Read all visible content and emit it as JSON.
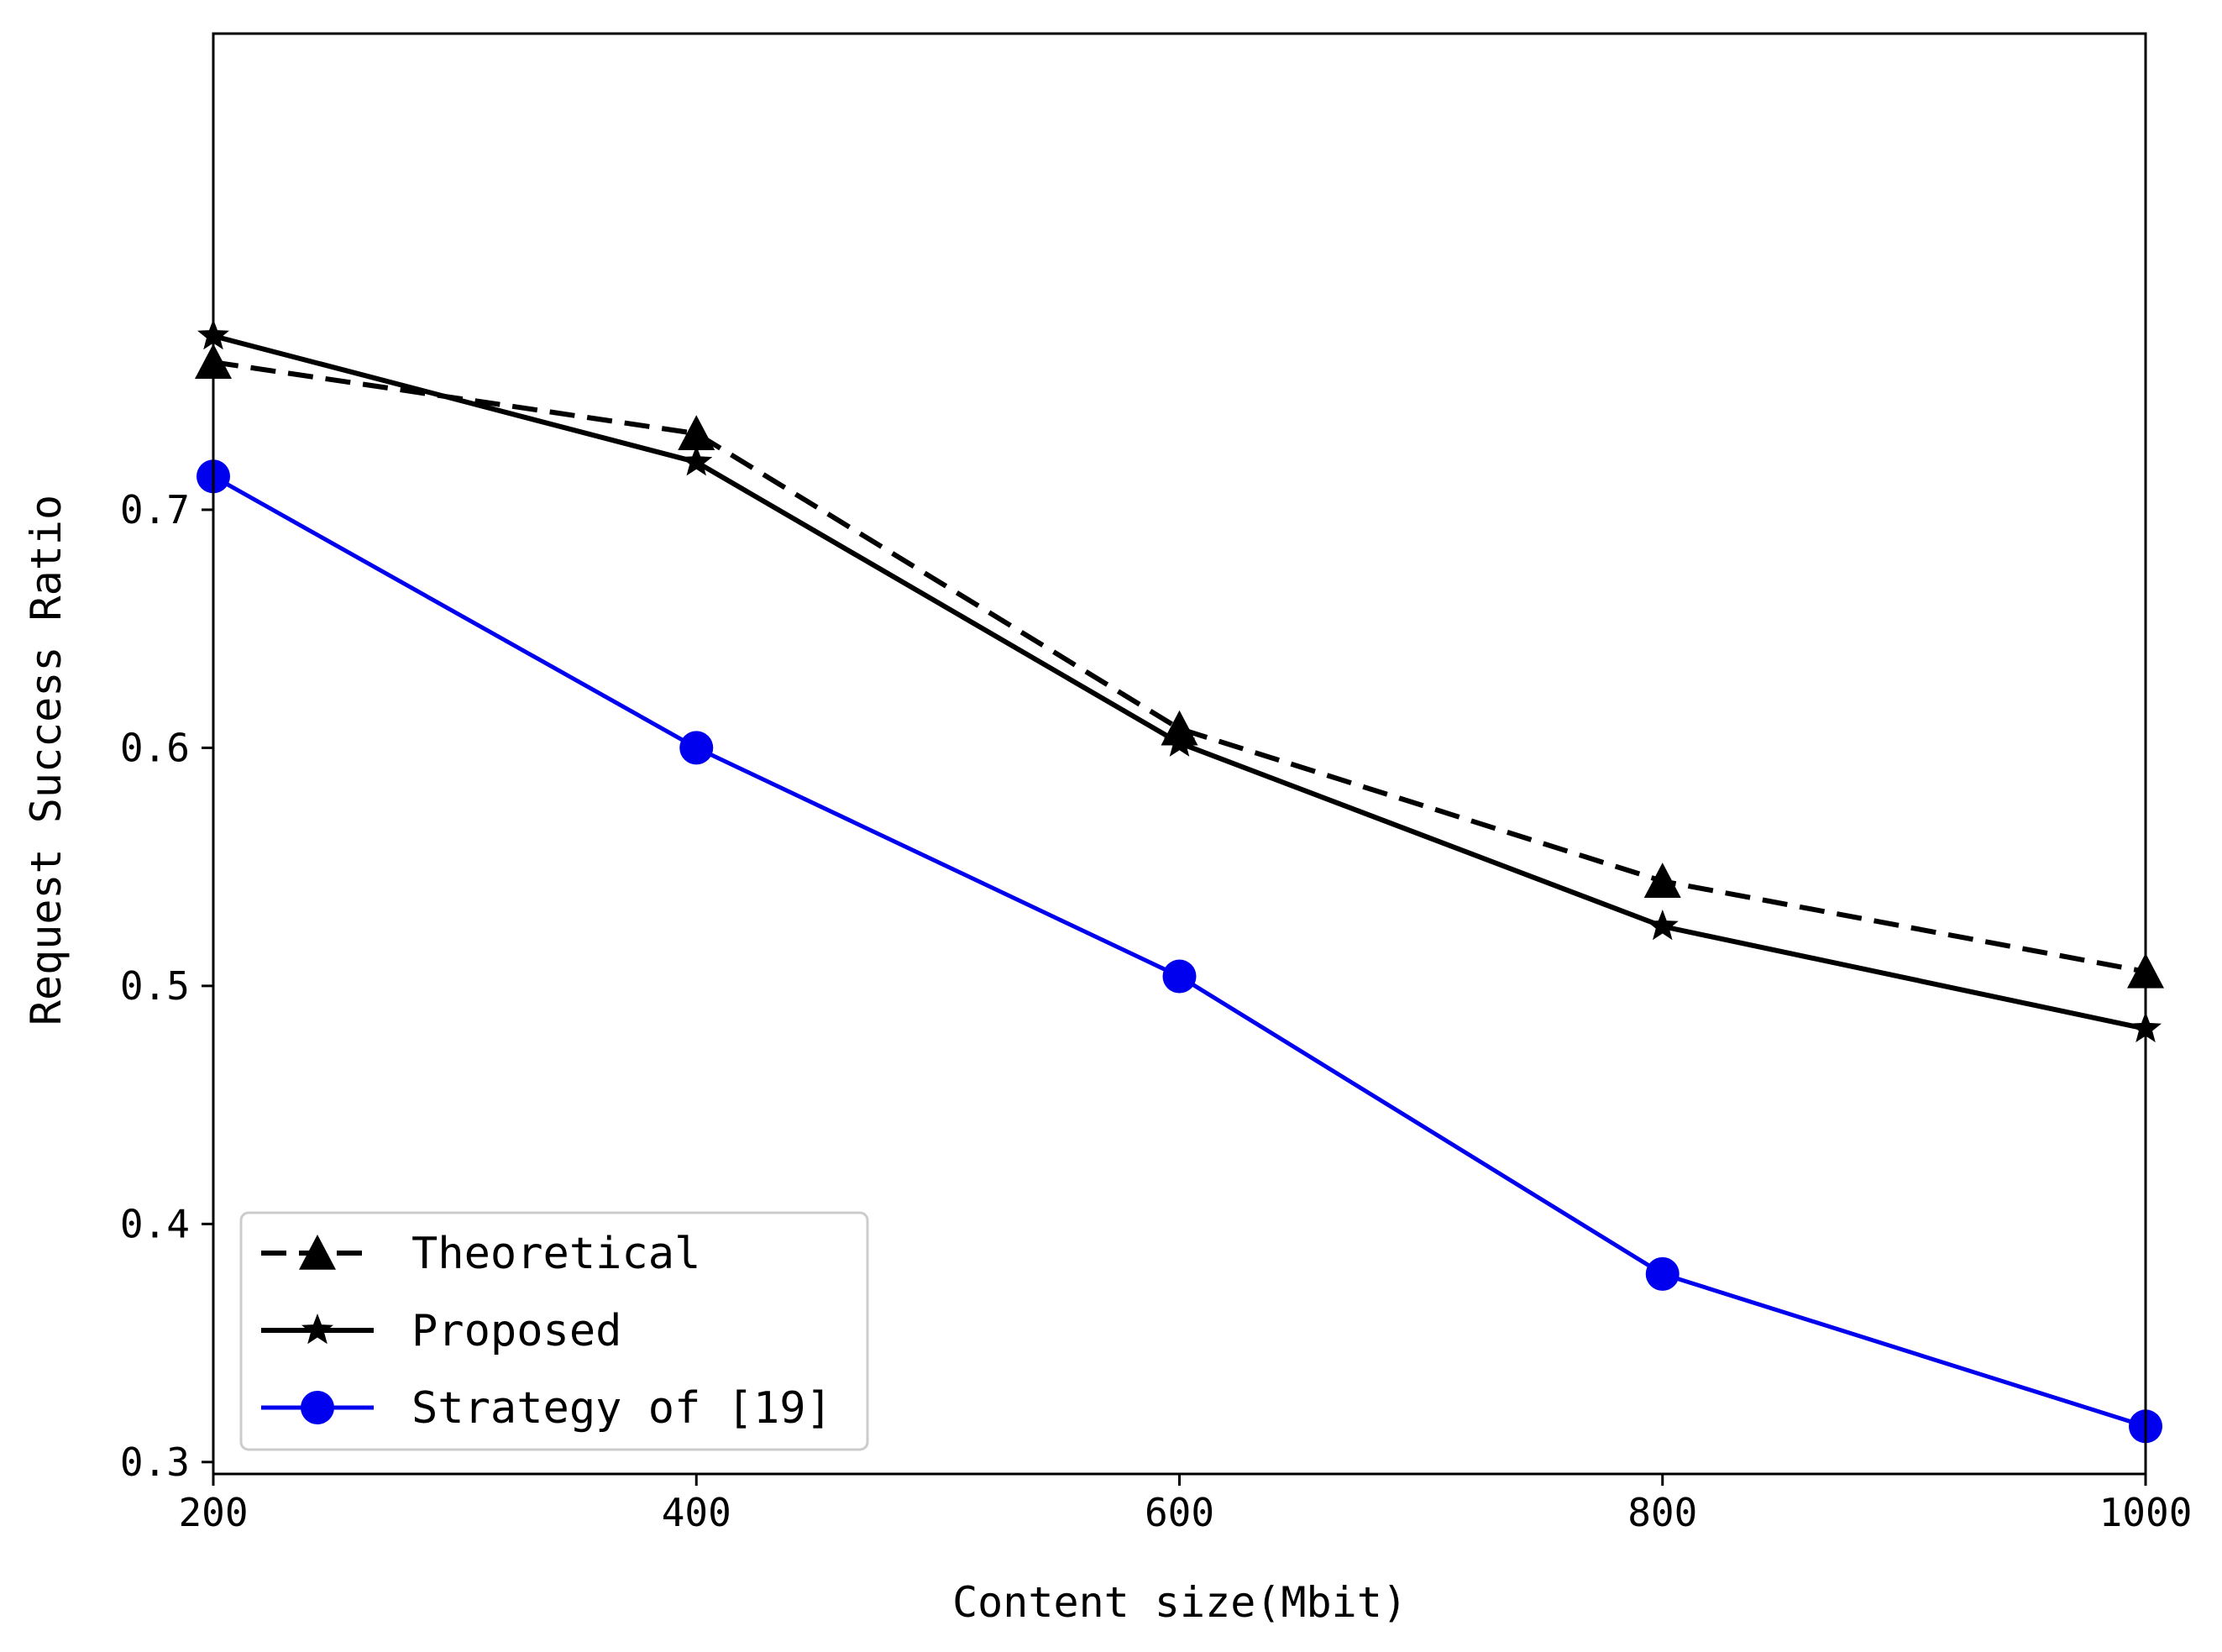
{
  "chart_data": {
    "type": "line",
    "title": "",
    "xlabel": "Content size(Mbit)",
    "ylabel": "Request Success Ratio",
    "x": [
      200,
      400,
      600,
      800,
      1000
    ],
    "xlim": [
      200,
      1000
    ],
    "ylim": [
      0.295,
      0.9
    ],
    "xticks": [
      200,
      400,
      600,
      800,
      1000
    ],
    "xtick_labels": [
      "200",
      "400",
      "600",
      "800",
      "1000"
    ],
    "yticks": [
      0.3,
      0.4,
      0.5,
      0.6,
      0.7
    ],
    "ytick_labels": [
      "0.3",
      "0.4",
      "0.5",
      "0.6",
      "0.7"
    ],
    "grid": false,
    "legend_position": "bottom-left",
    "series": [
      {
        "name": "Theoretical",
        "values": [
          0.762,
          0.732,
          0.608,
          0.544,
          0.506
        ],
        "color": "#000000",
        "line_style": "dashed",
        "marker": "triangle"
      },
      {
        "name": "Proposed",
        "values": [
          0.773,
          0.72,
          0.602,
          0.525,
          0.482
        ],
        "color": "#000000",
        "line_style": "solid",
        "marker": "star"
      },
      {
        "name": "Strategy of [19]",
        "values": [
          0.714,
          0.6,
          0.504,
          0.379,
          0.315
        ],
        "color": "#0000ee",
        "line_style": "solid",
        "marker": "circle"
      }
    ]
  }
}
